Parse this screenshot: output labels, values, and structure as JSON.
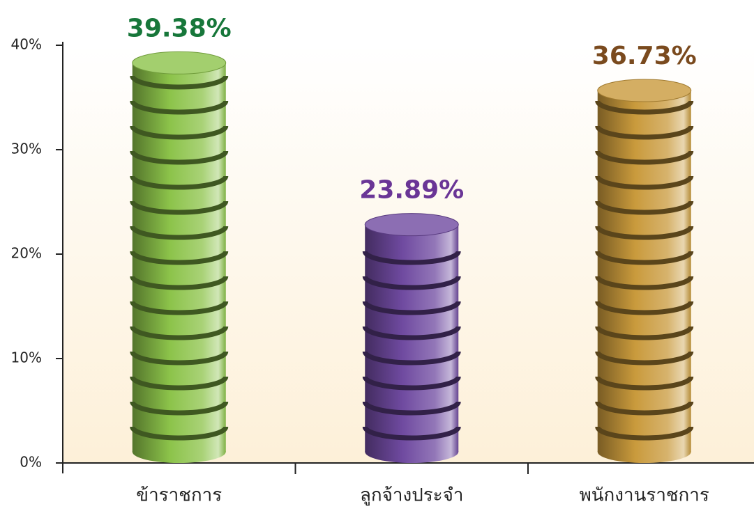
{
  "chart_data": {
    "type": "bar",
    "categories": [
      "ข้าราชการ",
      "ลูกจ้างประจำ",
      "พนักงานราชการ"
    ],
    "values": [
      39.38,
      23.89,
      36.73
    ],
    "value_labels": [
      "39.38%",
      "23.89%",
      "36.73%"
    ],
    "colors": [
      "#8cc34a",
      "#6f4aa0",
      "#c99a3c"
    ],
    "label_colors": [
      "#17773a",
      "#6a3596",
      "#7a4a1e"
    ],
    "ylim": [
      0,
      40
    ],
    "yticks": [
      {
        "value": 0,
        "label": "0%"
      },
      {
        "value": 10,
        "label": "10%"
      },
      {
        "value": 20,
        "label": "20%"
      },
      {
        "value": 30,
        "label": "30%"
      },
      {
        "value": 40,
        "label": "40%"
      }
    ]
  }
}
